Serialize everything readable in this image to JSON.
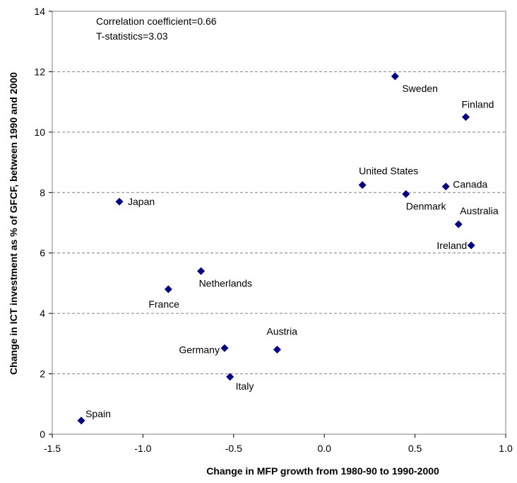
{
  "chart_data": {
    "type": "scatter",
    "xlabel": "Change in MFP growth from 1980-90 to 1990-2000",
    "ylabel": "Change in ICT investment as % of GFCF, between 1990 and 2000",
    "xlim": [
      -1.5,
      1.0
    ],
    "ylim": [
      0,
      14
    ],
    "x_ticks": [
      "-1.5",
      "-1.0",
      "-0.5",
      "0.0",
      "0.5",
      "1.0"
    ],
    "y_ticks": [
      "0",
      "2",
      "4",
      "6",
      "8",
      "10",
      "12",
      "14"
    ],
    "grid": "horizontal dashed",
    "annotations": [
      "Correlation coefficient=0.66",
      "T-statistics=3.03"
    ],
    "marker_color": "#000080",
    "points": [
      {
        "label": "Sweden",
        "x": 0.39,
        "y": 11.85
      },
      {
        "label": "Finland",
        "x": 0.78,
        "y": 10.5
      },
      {
        "label": "United States",
        "x": 0.21,
        "y": 8.25
      },
      {
        "label": "Canada",
        "x": 0.67,
        "y": 8.2
      },
      {
        "label": "Denmark",
        "x": 0.45,
        "y": 7.95
      },
      {
        "label": "Japan",
        "x": -1.13,
        "y": 7.7
      },
      {
        "label": "Australia",
        "x": 0.74,
        "y": 6.95
      },
      {
        "label": "Ireland",
        "x": 0.81,
        "y": 6.25
      },
      {
        "label": "Netherlands",
        "x": -0.68,
        "y": 5.4
      },
      {
        "label": "France",
        "x": -0.86,
        "y": 4.8
      },
      {
        "label": "Germany",
        "x": -0.55,
        "y": 2.85
      },
      {
        "label": "Austria",
        "x": -0.26,
        "y": 2.8
      },
      {
        "label": "Italy",
        "x": -0.52,
        "y": 1.9
      },
      {
        "label": "Spain",
        "x": -1.34,
        "y": 0.45
      }
    ]
  }
}
